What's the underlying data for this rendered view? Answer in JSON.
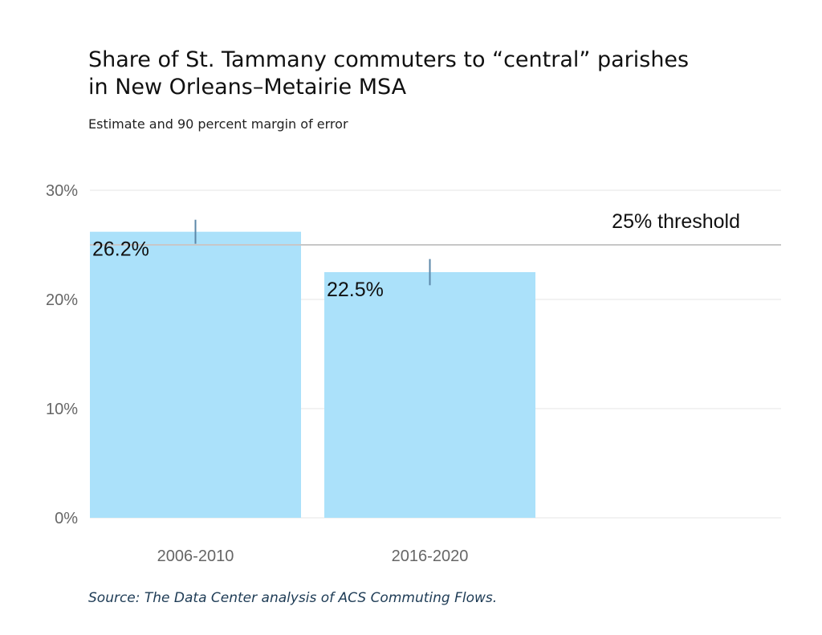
{
  "chart_data": {
    "type": "bar",
    "title": "Share of St. Tammany commuters to “central” parishes in New Orleans–Metairie MSA",
    "title_lines": [
      "Share of St. Tammany commuters to “central” parishes",
      "in New Orleans–Metairie MSA"
    ],
    "subtitle": "Estimate and 90 percent margin of error",
    "categories": [
      "2006-2010",
      "2016-2020"
    ],
    "values": [
      26.2,
      22.5
    ],
    "data_labels": [
      "26.2%",
      "22.5%"
    ],
    "error_bars": [
      {
        "low": 25.1,
        "high": 27.3
      },
      {
        "low": 21.3,
        "high": 23.7
      }
    ],
    "xlabel": "",
    "ylabel": "",
    "ylim": [
      0,
      30
    ],
    "yticks": [
      0,
      10,
      20,
      30
    ],
    "ytick_labels": [
      "0%",
      "10%",
      "20%",
      "30%"
    ],
    "grid": true,
    "reference_line": {
      "value": 25,
      "label": "25% threshold"
    },
    "colors": {
      "bar": "#abe1fa",
      "error": "#5b87a8",
      "ref": "#c7c7c7",
      "grid": "#e6e6e6"
    },
    "source": "Source: The Data Center analysis of ACS Commuting Flows."
  }
}
